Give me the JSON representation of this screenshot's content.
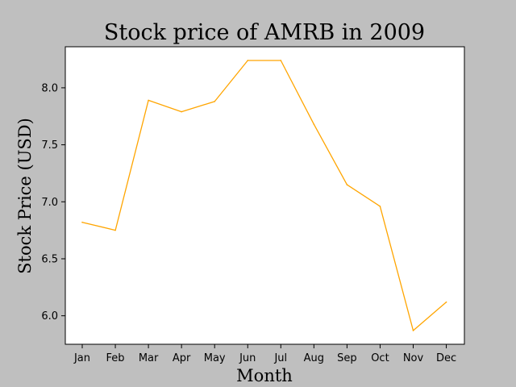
{
  "chart_data": {
    "type": "line",
    "title": "Stock price of AMRB in 2009",
    "xlabel": "Month",
    "ylabel": "Stock Price (USD)",
    "categories": [
      "Jan",
      "Feb",
      "Mar",
      "Apr",
      "May",
      "Jun",
      "Jul",
      "Aug",
      "Sep",
      "Oct",
      "Nov",
      "Dec"
    ],
    "series": [
      {
        "values": [
          6.82,
          6.75,
          7.89,
          7.79,
          7.88,
          8.24,
          8.24,
          7.68,
          7.15,
          6.96,
          5.87,
          6.12
        ],
        "color": "#ffa500"
      }
    ],
    "ylim": [
      5.75,
      8.36
    ],
    "yticks": [
      6.0,
      6.5,
      7.0,
      7.5,
      8.0
    ],
    "ytick_labels": [
      "6.0",
      "6.5",
      "7.0",
      "7.5",
      "8.0"
    ],
    "grid": false,
    "background": "#bfbfbf",
    "plot_background": "#ffffff"
  }
}
